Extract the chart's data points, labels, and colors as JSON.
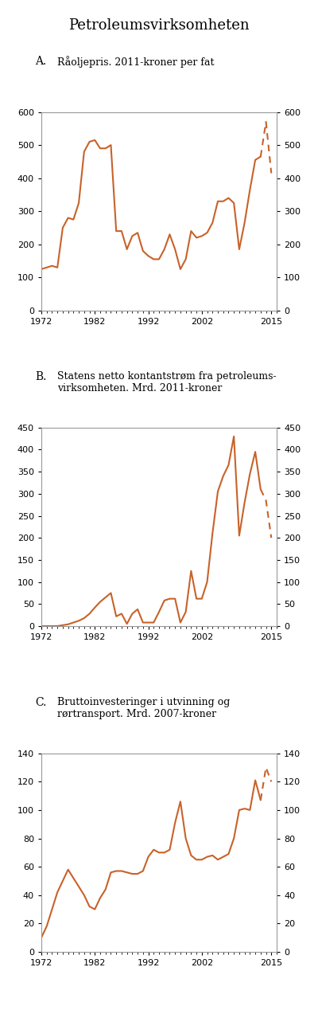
{
  "title": "Petroleumsvirksomheten",
  "line_color": "#C8622A",
  "panels": [
    {
      "label": "A.",
      "subtitle": "Råoljepris. 2011-kroner per fat",
      "subtitle_lines": 1,
      "ylim": [
        0,
        600
      ],
      "yticks": [
        0,
        100,
        200,
        300,
        400,
        500,
        600
      ],
      "solid_years": [
        1972,
        1973,
        1974,
        1975,
        1976,
        1977,
        1978,
        1979,
        1980,
        1981,
        1982,
        1983,
        1984,
        1985,
        1986,
        1987,
        1988,
        1989,
        1990,
        1991,
        1992,
        1993,
        1994,
        1995,
        1996,
        1997,
        1998,
        1999,
        2000,
        2001,
        2002,
        2003,
        2004,
        2005,
        2006,
        2007,
        2008,
        2009,
        2010,
        2011,
        2012,
        2013
      ],
      "solid_values": [
        125,
        130,
        135,
        130,
        250,
        280,
        275,
        325,
        480,
        510,
        515,
        490,
        490,
        500,
        240,
        240,
        185,
        225,
        235,
        180,
        165,
        155,
        155,
        185,
        230,
        185,
        125,
        155,
        240,
        220,
        225,
        235,
        265,
        330,
        330,
        340,
        325,
        185,
        265,
        365,
        455,
        465
      ],
      "dashed_years": [
        2013,
        2014,
        2015
      ],
      "dashed_values": [
        465,
        570,
        415
      ]
    },
    {
      "label": "B.",
      "subtitle": "Statens netto kontantstrøm fra petroleums-\nvirksomheten. Mrd. 2011-kroner",
      "subtitle_lines": 2,
      "ylim": [
        0,
        450
      ],
      "yticks": [
        0,
        50,
        100,
        150,
        200,
        250,
        300,
        350,
        400,
        450
      ],
      "solid_years": [
        1972,
        1973,
        1974,
        1975,
        1976,
        1977,
        1978,
        1979,
        1980,
        1981,
        1982,
        1983,
        1984,
        1985,
        1986,
        1987,
        1988,
        1989,
        1990,
        1991,
        1992,
        1993,
        1994,
        1995,
        1996,
        1997,
        1998,
        1999,
        2000,
        2001,
        2002,
        2003,
        2004,
        2005,
        2006,
        2007,
        2008,
        2009,
        2010,
        2011,
        2012,
        2013
      ],
      "solid_values": [
        0,
        0,
        0,
        0,
        2,
        4,
        8,
        12,
        18,
        28,
        42,
        55,
        65,
        75,
        22,
        28,
        5,
        28,
        38,
        8,
        8,
        8,
        32,
        58,
        62,
        62,
        8,
        32,
        125,
        62,
        62,
        100,
        210,
        305,
        340,
        365,
        430,
        205,
        280,
        345,
        395,
        310
      ],
      "dashed_years": [
        2013,
        2014,
        2015
      ],
      "dashed_values": [
        310,
        285,
        200
      ]
    },
    {
      "label": "C.",
      "subtitle": "Bruttoinvesteringer i utvinning og\nrørtransport. Mrd. 2007-kroner",
      "subtitle_lines": 2,
      "ylim": [
        0,
        140
      ],
      "yticks": [
        0,
        20,
        40,
        60,
        80,
        100,
        120,
        140
      ],
      "solid_years": [
        1972,
        1973,
        1974,
        1975,
        1976,
        1977,
        1978,
        1979,
        1980,
        1981,
        1982,
        1983,
        1984,
        1985,
        1986,
        1987,
        1988,
        1989,
        1990,
        1991,
        1992,
        1993,
        1994,
        1995,
        1996,
        1997,
        1998,
        1999,
        2000,
        2001,
        2002,
        2003,
        2004,
        2005,
        2006,
        2007,
        2008,
        2009,
        2010,
        2011,
        2012,
        2013
      ],
      "solid_values": [
        10,
        18,
        30,
        42,
        50,
        58,
        52,
        46,
        40,
        32,
        30,
        38,
        44,
        56,
        57,
        57,
        56,
        55,
        55,
        57,
        67,
        72,
        70,
        70,
        72,
        91,
        106,
        80,
        68,
        65,
        65,
        67,
        68,
        65,
        67,
        69,
        80,
        100,
        101,
        100,
        121,
        107
      ],
      "dashed_years": [
        2013,
        2014,
        2015
      ],
      "dashed_values": [
        107,
        130,
        120
      ]
    }
  ],
  "xtick_years": [
    1972,
    1982,
    1992,
    2002,
    2015
  ],
  "xmin": 1972,
  "xmax": 2016
}
